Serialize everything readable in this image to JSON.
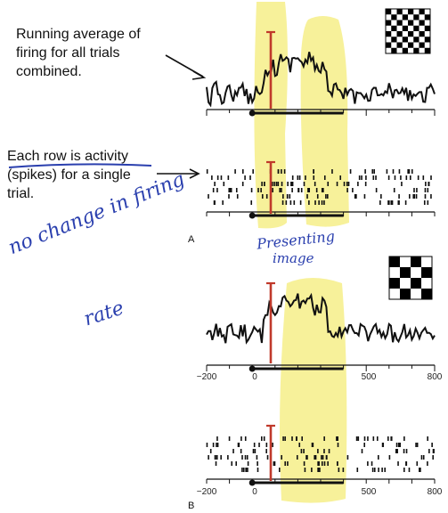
{
  "annotations": {
    "average_note": [
      "Running average of",
      "firing for all trials",
      "combined."
    ],
    "row_note": [
      "Each row is activity",
      "(spikes) for a single",
      "trial."
    ]
  },
  "handwriting": {
    "no_change": [
      "no change in firing",
      "rate"
    ],
    "presenting": [
      "Presenting",
      "image"
    ]
  },
  "panels": {
    "a": "A",
    "b": "B"
  },
  "axis": {
    "ticks": [
      "−200",
      "0",
      "500",
      "800"
    ]
  },
  "colors": {
    "highlight": "#f6f08f",
    "stimulus_marker": "#c0392b",
    "ink": "#111111",
    "pen": "#2a3fae"
  },
  "icons": {
    "fine_checkerboard": "checkerboard-icon",
    "coarse_checkerboard": "checkerboard-icon"
  }
}
